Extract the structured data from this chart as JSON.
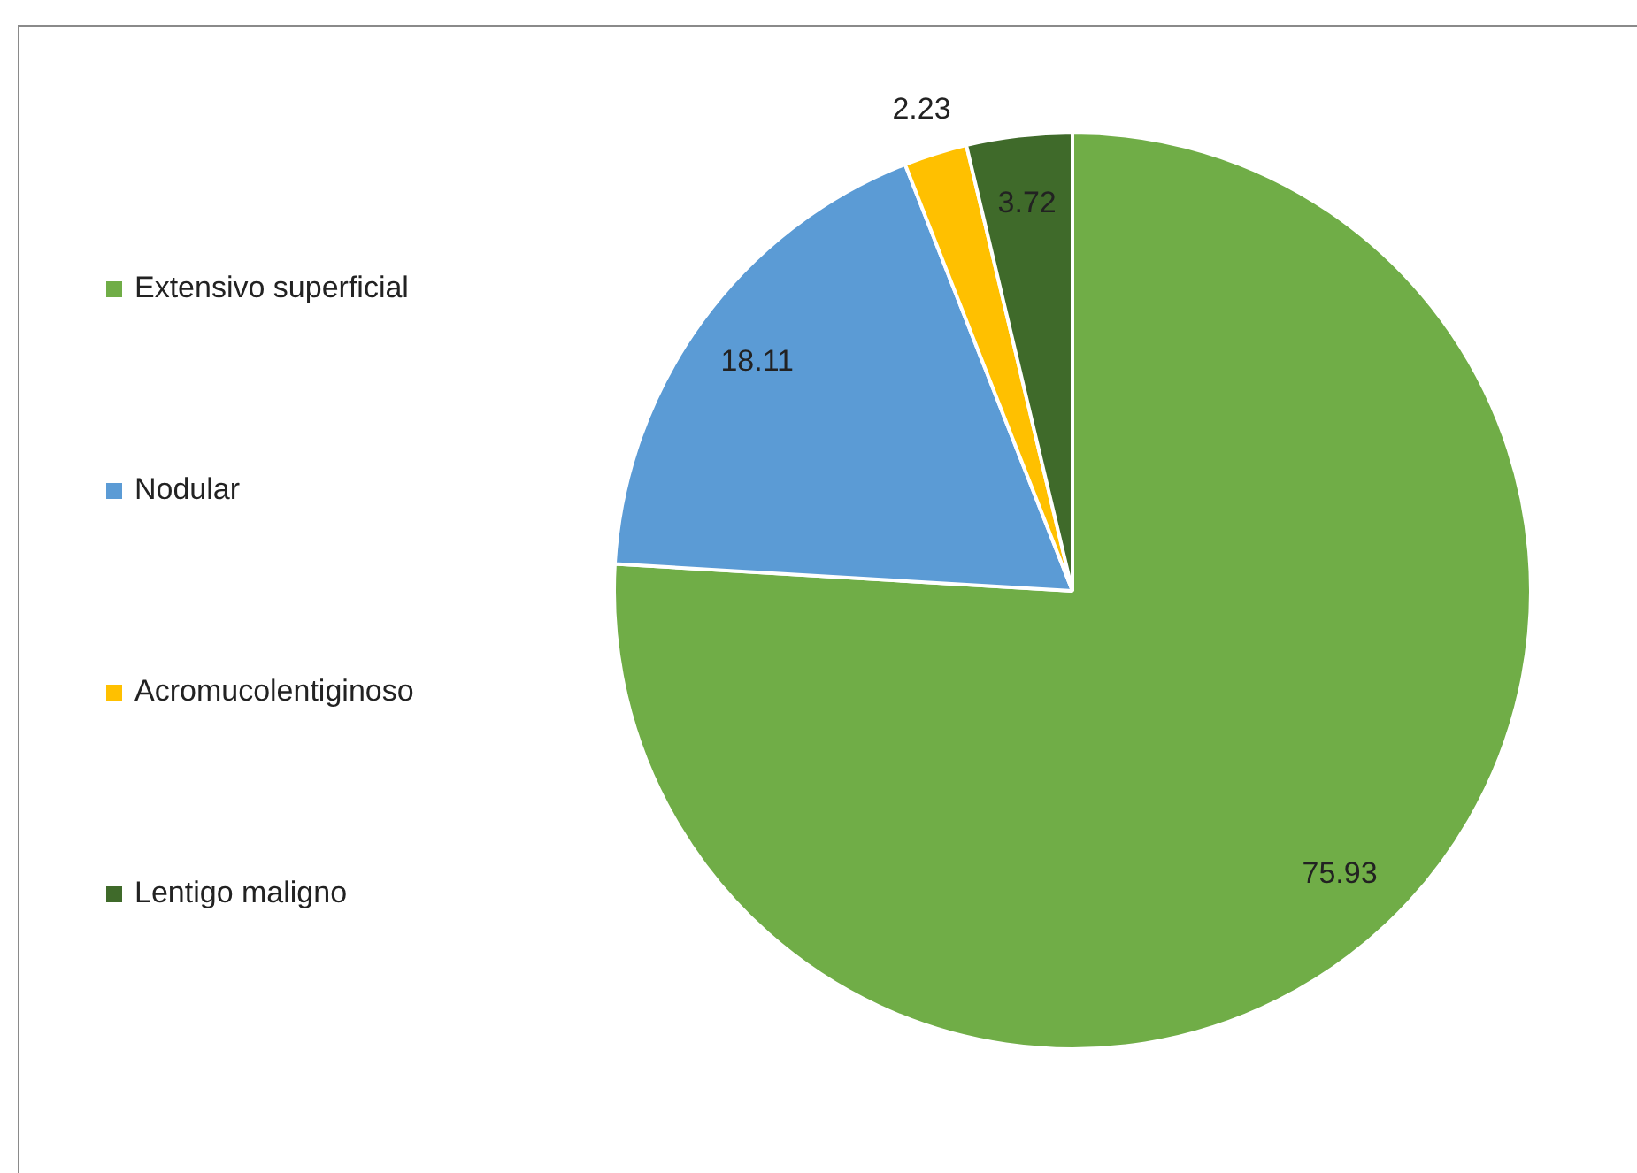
{
  "chart_data": {
    "type": "pie",
    "categories": [
      "Extensivo superficial",
      "Nodular",
      "Acromucolentiginoso",
      "Lentigo maligno"
    ],
    "values": [
      75.93,
      18.11,
      2.23,
      3.72
    ],
    "colors": [
      "#70ad47",
      "#5b9bd5",
      "#ffc000",
      "#3f6a2a"
    ],
    "data_labels": true,
    "legend": "left"
  }
}
